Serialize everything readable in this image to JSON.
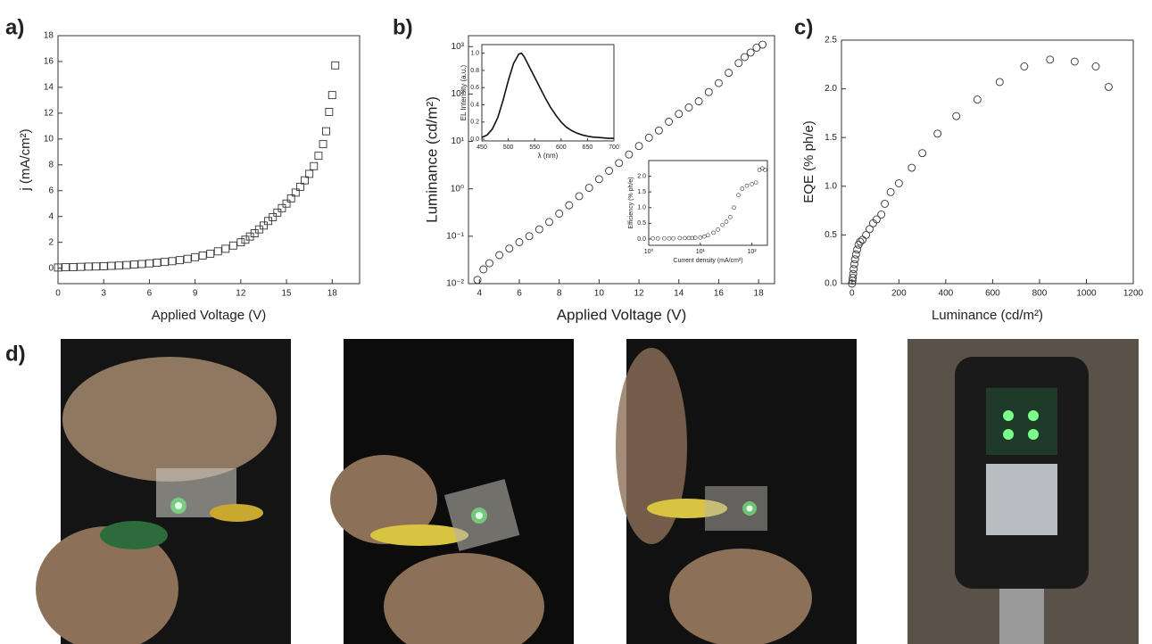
{
  "chart_data": [
    {
      "type": "scatter",
      "panel_label": "a)",
      "marker": "square",
      "xlabel": "Applied Voltage (V)",
      "ylabel": "j (mA/cm²)",
      "xlim": [
        0,
        19.8
      ],
      "ylim": [
        -1.2,
        18
      ],
      "xticks": [
        0,
        3,
        6,
        9,
        12,
        15,
        18
      ],
      "yticks": [
        0,
        2,
        4,
        6,
        8,
        10,
        12,
        14,
        16,
        18
      ],
      "x": [
        0,
        0.5,
        1,
        1.5,
        2,
        2.5,
        3,
        3.5,
        4,
        4.5,
        5,
        5.5,
        6,
        6.5,
        7,
        7.5,
        8,
        8.5,
        9,
        9.5,
        10,
        10.5,
        11,
        11.5,
        12,
        12.3,
        12.6,
        12.9,
        13.2,
        13.5,
        13.8,
        14.1,
        14.4,
        14.7,
        15,
        15.3,
        15.6,
        15.9,
        16.2,
        16.5,
        16.8,
        17.1,
        17.4,
        17.6,
        17.8,
        18,
        18.2
      ],
      "values": [
        0.05,
        0.07,
        0.08,
        0.1,
        0.12,
        0.13,
        0.15,
        0.18,
        0.2,
        0.24,
        0.28,
        0.32,
        0.37,
        0.42,
        0.48,
        0.54,
        0.62,
        0.72,
        0.85,
        0.98,
        1.12,
        1.3,
        1.5,
        1.75,
        2.0,
        2.2,
        2.45,
        2.7,
        3.0,
        3.3,
        3.65,
        3.95,
        4.3,
        4.65,
        5.0,
        5.4,
        5.85,
        6.3,
        6.8,
        7.3,
        7.9,
        8.7,
        9.6,
        10.6,
        12.1,
        13.4,
        15.7
      ]
    },
    {
      "type": "scatter",
      "panel_label": "b)",
      "marker": "circle",
      "log_y": true,
      "xlabel": "Applied Voltage (V)",
      "ylabel": "Luminance (cd/m²)",
      "xlim": [
        3.45,
        18.8
      ],
      "ylim": [
        0.01,
        1700
      ],
      "xticks": [
        4,
        6,
        8,
        10,
        12,
        14,
        16,
        18
      ],
      "yticks": [
        {
          "value": 0.01,
          "label": "10⁻²"
        },
        {
          "value": 0.1,
          "label": "10⁻¹"
        },
        {
          "value": 1,
          "label": "10⁰"
        },
        {
          "value": 10,
          "label": "10¹"
        },
        {
          "value": 100,
          "label": "10²"
        },
        {
          "value": 1000,
          "label": "10³"
        }
      ],
      "x": [
        3.9,
        4.2,
        4.5,
        5,
        5.5,
        6,
        6.5,
        7,
        7.5,
        8,
        8.5,
        9,
        9.5,
        10,
        10.5,
        11,
        11.5,
        12,
        12.5,
        13,
        13.5,
        14,
        14.5,
        15,
        15.5,
        16,
        16.5,
        17,
        17.3,
        17.6,
        17.9,
        18.2
      ],
      "values": [
        0.012,
        0.02,
        0.027,
        0.04,
        0.055,
        0.075,
        0.1,
        0.14,
        0.2,
        0.3,
        0.45,
        0.7,
        1.05,
        1.6,
        2.4,
        3.5,
        5.3,
        8,
        12,
        17,
        26,
        38,
        52,
        70,
        110,
        170,
        280,
        450,
        600,
        750,
        950,
        1100
      ]
    },
    {
      "type": "line",
      "xlabel": "λ (nm)",
      "ylabel": "EL Intensity (a.u.)",
      "xlim": [
        450,
        700
      ],
      "ylim": [
        -0.02,
        1.1
      ],
      "xticks": [
        450,
        500,
        550,
        600,
        650,
        700
      ],
      "yticks": [
        {
          "value": 0,
          "label": "0.0"
        },
        0.2,
        0.4,
        0.6,
        0.8,
        {
          "value": 1,
          "label": "1.0"
        }
      ],
      "x": [
        450,
        460,
        470,
        480,
        490,
        500,
        510,
        520,
        525,
        530,
        540,
        550,
        560,
        570,
        580,
        590,
        600,
        610,
        620,
        630,
        640,
        650,
        660,
        670,
        680,
        690,
        700
      ],
      "values": [
        0.02,
        0.05,
        0.12,
        0.25,
        0.45,
        0.68,
        0.88,
        0.99,
        1.0,
        0.96,
        0.84,
        0.72,
        0.6,
        0.48,
        0.37,
        0.28,
        0.2,
        0.14,
        0.1,
        0.07,
        0.05,
        0.035,
        0.025,
        0.02,
        0.015,
        0.01,
        0.01
      ]
    },
    {
      "type": "scatter",
      "marker": "circle",
      "log_x": true,
      "xlabel": "Current density (mA/cm²)",
      "ylabel": "Efficiency (% ph/e)",
      "xlim": [
        1,
        200
      ],
      "ylim": [
        -0.2,
        2.5
      ],
      "xticks": [
        {
          "value": 1,
          "label": "10⁰"
        },
        {
          "value": 10,
          "label": "10¹"
        },
        {
          "value": 100,
          "label": "10²"
        }
      ],
      "yticks": [
        {
          "value": 0,
          "label": "0.0"
        },
        0.5,
        {
          "value": 1,
          "label": "1.0"
        },
        1.5,
        {
          "value": 2,
          "label": "2.0"
        }
      ],
      "x": [
        1.2,
        1.5,
        2,
        2.5,
        3,
        4,
        5,
        6,
        7,
        8,
        10,
        12,
        14,
        18,
        22,
        27,
        32,
        38,
        45,
        55,
        65,
        80,
        100,
        120,
        140,
        160,
        180
      ],
      "values": [
        0.02,
        0.02,
        0.02,
        0.02,
        0.02,
        0.03,
        0.03,
        0.03,
        0.03,
        0.04,
        0.05,
        0.08,
        0.12,
        0.2,
        0.3,
        0.45,
        0.55,
        0.7,
        1.0,
        1.4,
        1.6,
        1.7,
        1.75,
        1.8,
        2.2,
        2.25,
        2.2
      ]
    },
    {
      "type": "scatter",
      "panel_label": "c)",
      "marker": "circle",
      "xlabel": "Luminance (cd/m²)",
      "ylabel": "EQE (% ph/e)",
      "xlim": [
        -45,
        1200
      ],
      "ylim": [
        0,
        2.5
      ],
      "xticks": [
        0,
        200,
        400,
        600,
        800,
        1000,
        1200
      ],
      "yticks": [
        {
          "value": 0,
          "label": "0.0"
        },
        0.5,
        {
          "value": 1,
          "label": "1.0"
        },
        1.5,
        {
          "value": 2,
          "label": "2.0"
        },
        2.5
      ],
      "x": [
        0,
        2,
        3,
        5,
        7,
        10,
        13,
        17,
        22,
        28,
        35,
        45,
        60,
        75,
        90,
        105,
        125,
        140,
        165,
        200,
        255,
        300,
        365,
        445,
        535,
        630,
        735,
        845,
        950,
        1040,
        1095
      ],
      "values": [
        0,
        0.03,
        0.06,
        0.1,
        0.15,
        0.2,
        0.25,
        0.3,
        0.35,
        0.4,
        0.43,
        0.45,
        0.5,
        0.56,
        0.62,
        0.66,
        0.71,
        0.82,
        0.94,
        1.03,
        1.19,
        1.34,
        1.54,
        1.72,
        1.89,
        2.07,
        2.23,
        2.3,
        2.28,
        2.23,
        2.02
      ]
    }
  ],
  "photos_label": "d)"
}
